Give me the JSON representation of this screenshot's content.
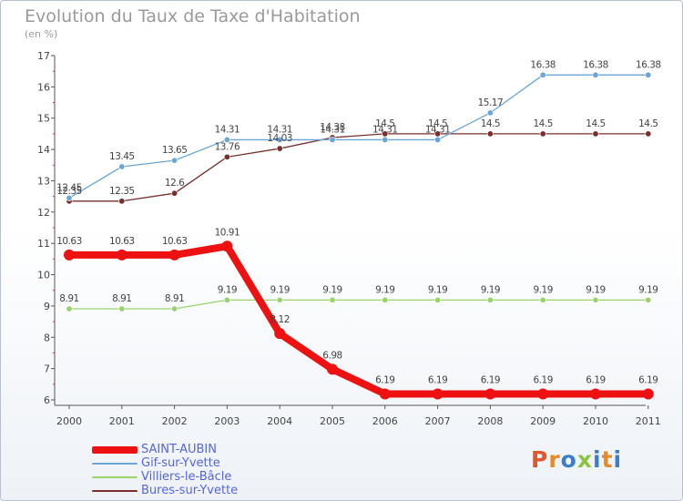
{
  "title": "Evolution du Taux de Taxe d'Habitation",
  "subtitle": "(en %)",
  "logo": {
    "text": "Proxiti",
    "colors": [
      "#e2562d",
      "#e88a26",
      "#3b7fc8",
      "#8bc43f",
      "#3b7fc8",
      "#e88a26",
      "#3b7fc8"
    ]
  },
  "chart_data": {
    "type": "line",
    "title": "Evolution du Taux de Taxe d'Habitation",
    "ylabel": "(en %)",
    "xlabel": "",
    "x": [
      "2000",
      "2001",
      "2002",
      "2003",
      "2004",
      "2005",
      "2006",
      "2007",
      "2008",
      "2009",
      "2010",
      "2011"
    ],
    "ylim": [
      6,
      17
    ],
    "yticks": [
      "6",
      "7",
      "8",
      "9",
      "10",
      "11",
      "12",
      "13",
      "14",
      "15",
      "16",
      "17"
    ],
    "grid": false,
    "legend_position": "bottom-left",
    "series": [
      {
        "name": "SAINT-AUBIN",
        "color": "#ee1111",
        "values": [
          10.63,
          10.63,
          10.63,
          10.91,
          8.12,
          6.98,
          6.19,
          6.19,
          6.19,
          6.19,
          6.19,
          6.19
        ],
        "labels": [
          "10.63",
          "10.63",
          "10.63",
          "10.91",
          "8.12",
          "6.98",
          "6.19",
          "6.19",
          "6.19",
          "6.19",
          "6.19",
          "6.19"
        ]
      },
      {
        "name": "Gif-sur-Yvette",
        "color": "#6aa6d8",
        "values": [
          12.45,
          13.45,
          13.65,
          14.31,
          14.31,
          14.31,
          14.31,
          14.31,
          15.17,
          16.38,
          16.38,
          16.38
        ],
        "labels": [
          "12.45",
          "13.45",
          "13.65",
          "14.31",
          "14.31",
          "14.31",
          "14.31",
          "14.31",
          "15.17",
          "16.38",
          "16.38",
          "16.38"
        ]
      },
      {
        "name": "Villiers-le-Bâcle",
        "color": "#99d46b",
        "values": [
          8.91,
          8.91,
          8.91,
          9.19,
          9.19,
          9.19,
          9.19,
          9.19,
          9.19,
          9.19,
          9.19,
          9.19
        ],
        "labels": [
          "8.91",
          "8.91",
          "8.91",
          "9.19",
          "9.19",
          "9.19",
          "9.19",
          "9.19",
          "9.19",
          "9.19",
          "9.19",
          "9.19"
        ]
      },
      {
        "name": "Bures-sur-Yvette",
        "color": "#7a2e2e",
        "values": [
          12.35,
          12.35,
          12.6,
          13.76,
          14.03,
          14.38,
          14.5,
          14.5,
          14.5,
          14.5,
          14.5,
          14.5
        ],
        "labels": [
          "12.35",
          "12.35",
          "12.6",
          "13.76",
          "14.03",
          "14.38",
          "14.5",
          "14.5",
          "14.5",
          "14.5",
          "14.5",
          "14.5"
        ]
      }
    ]
  }
}
